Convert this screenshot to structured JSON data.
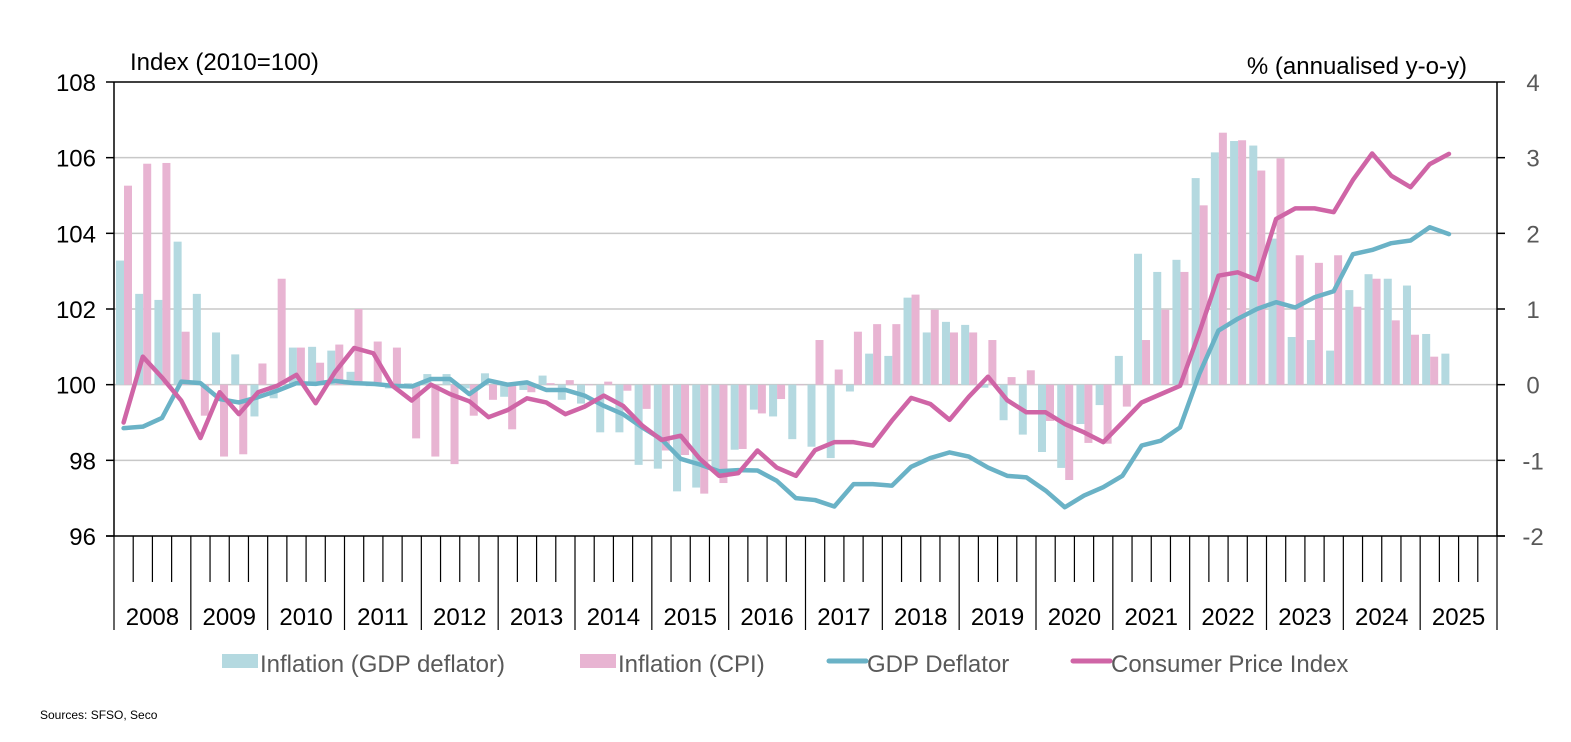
{
  "chart_data": {
    "type": "bar+line",
    "title": "",
    "left_axis": {
      "label": "Index (2010=100)",
      "ylim": [
        96,
        108
      ],
      "ticks": [
        96,
        98,
        100,
        102,
        104,
        106,
        108
      ]
    },
    "right_axis": {
      "label": "% (annualised y-o-y)",
      "ylim": [
        -2,
        4
      ],
      "ticks": [
        -2,
        -1,
        0,
        1,
        2,
        3,
        4
      ]
    },
    "x_years": [
      "2008",
      "2009",
      "2010",
      "2011",
      "2012",
      "2013",
      "2014",
      "2015",
      "2016",
      "2017",
      "2018",
      "2019",
      "2020",
      "2021",
      "2022",
      "2023",
      "2024",
      "2025"
    ],
    "x_frequency": "quarterly",
    "x_start": "2008Q1",
    "grid": true,
    "legend_position": "bottom",
    "colors": {
      "gdp_bar": "#b4d9e0",
      "cpi_bar": "#e8b4d2",
      "gdp_line": "#6ab2c6",
      "cpi_line": "#cf65a6",
      "grid": "#c8c8c8",
      "axis": "#000000"
    },
    "series": [
      {
        "name": "Inflation (GDP deflator)",
        "kind": "bar",
        "axis": "right",
        "values": [
          1.64,
          1.2,
          1.12,
          1.89,
          1.2,
          0.69,
          0.4,
          -0.42,
          -0.18,
          0.49,
          0.5,
          0.45,
          0.17,
          -0.02,
          -0.05,
          0.02,
          0.14,
          0.14,
          -0.05,
          0.15,
          -0.16,
          -0.07,
          0.12,
          -0.2,
          -0.25,
          -0.63,
          -0.63,
          -1.06,
          -1.11,
          -1.41,
          -1.36,
          -1.14,
          -0.86,
          -0.33,
          -0.42,
          -0.72,
          -0.82,
          -0.97,
          -0.09,
          0.41,
          0.38,
          1.15,
          0.69,
          0.83,
          0.79,
          -0.04,
          -0.47,
          -0.66,
          -0.89,
          -1.1,
          -0.52,
          -0.27,
          0.38,
          1.73,
          1.49,
          1.65,
          2.73,
          3.07,
          3.22,
          3.16,
          1.93,
          0.63,
          0.59,
          0.45,
          1.25,
          1.46,
          1.4,
          1.31,
          0.67,
          0.41
        ]
      },
      {
        "name": "Inflation (CPI)",
        "kind": "bar",
        "axis": "right",
        "values": [
          2.63,
          2.92,
          2.93,
          0.7,
          -0.41,
          -0.95,
          -0.92,
          0.28,
          1.4,
          0.49,
          0.29,
          0.53,
          1.0,
          0.57,
          0.49,
          -0.71,
          -0.95,
          -1.05,
          -0.41,
          -0.2,
          -0.59,
          -0.1,
          0.02,
          0.06,
          0.0,
          0.04,
          -0.08,
          -0.32,
          -0.87,
          -0.93,
          -1.44,
          -1.3,
          -0.85,
          -0.38,
          -0.19,
          0.0,
          0.59,
          0.2,
          0.7,
          0.8,
          0.8,
          1.19,
          0.99,
          0.69,
          0.69,
          0.59,
          0.1,
          0.19,
          -0.48,
          -1.26,
          -0.77,
          -0.78,
          -0.29,
          0.59,
          0.99,
          1.49,
          2.37,
          3.33,
          3.23,
          2.83,
          2.99,
          1.71,
          1.61,
          1.71,
          1.03,
          1.4,
          0.85,
          0.66,
          0.37,
          null
        ]
      },
      {
        "name": "GDP Deflator",
        "kind": "line",
        "axis": "left",
        "values": [
          98.85,
          98.89,
          99.12,
          100.08,
          100.04,
          99.62,
          99.53,
          99.67,
          99.84,
          100.04,
          100.02,
          100.1,
          100.04,
          100.02,
          99.97,
          99.95,
          100.15,
          100.15,
          99.75,
          100.11,
          100.0,
          100.06,
          99.86,
          99.86,
          99.71,
          99.44,
          99.22,
          98.87,
          98.56,
          98.04,
          97.89,
          97.71,
          97.74,
          97.73,
          97.46,
          97.0,
          96.95,
          96.78,
          97.37,
          97.37,
          97.33,
          97.83,
          98.06,
          98.21,
          98.1,
          97.81,
          97.59,
          97.55,
          97.2,
          96.76,
          97.07,
          97.29,
          97.59,
          98.39,
          98.52,
          98.87,
          100.28,
          101.43,
          101.74,
          102.0,
          102.18,
          102.04,
          102.31,
          102.47,
          103.45,
          103.56,
          103.74,
          103.81,
          104.16,
          103.98
        ]
      },
      {
        "name": "Consumer Price Index",
        "kind": "line",
        "axis": "left",
        "values": [
          99.0,
          100.74,
          100.19,
          99.58,
          98.59,
          99.8,
          99.22,
          99.8,
          99.97,
          100.26,
          99.51,
          100.33,
          100.97,
          100.83,
          99.97,
          99.58,
          100.0,
          99.75,
          99.56,
          99.14,
          99.33,
          99.64,
          99.53,
          99.22,
          99.42,
          99.71,
          99.44,
          98.92,
          98.54,
          98.65,
          98.04,
          97.59,
          97.66,
          98.26,
          97.81,
          97.59,
          98.27,
          98.48,
          98.48,
          98.39,
          99.05,
          99.65,
          99.49,
          99.07,
          99.68,
          100.21,
          99.59,
          99.27,
          99.27,
          98.96,
          98.74,
          98.48,
          99.0,
          99.53,
          99.75,
          99.97,
          101.38,
          102.88,
          102.97,
          102.77,
          104.38,
          104.66,
          104.66,
          104.56,
          105.41,
          106.11,
          105.52,
          105.22,
          105.83,
          106.1
        ]
      }
    ],
    "legend": [
      {
        "label": "Inflation (GDP deflator)",
        "marker": "box",
        "series": 0
      },
      {
        "label": "Inflation (CPI)",
        "marker": "box",
        "series": 1
      },
      {
        "label": "GDP Deflator",
        "marker": "line",
        "series": 2
      },
      {
        "label": "Consumer Price Index",
        "marker": "line",
        "series": 3
      }
    ],
    "source": "Sources: SFSO, Seco"
  }
}
